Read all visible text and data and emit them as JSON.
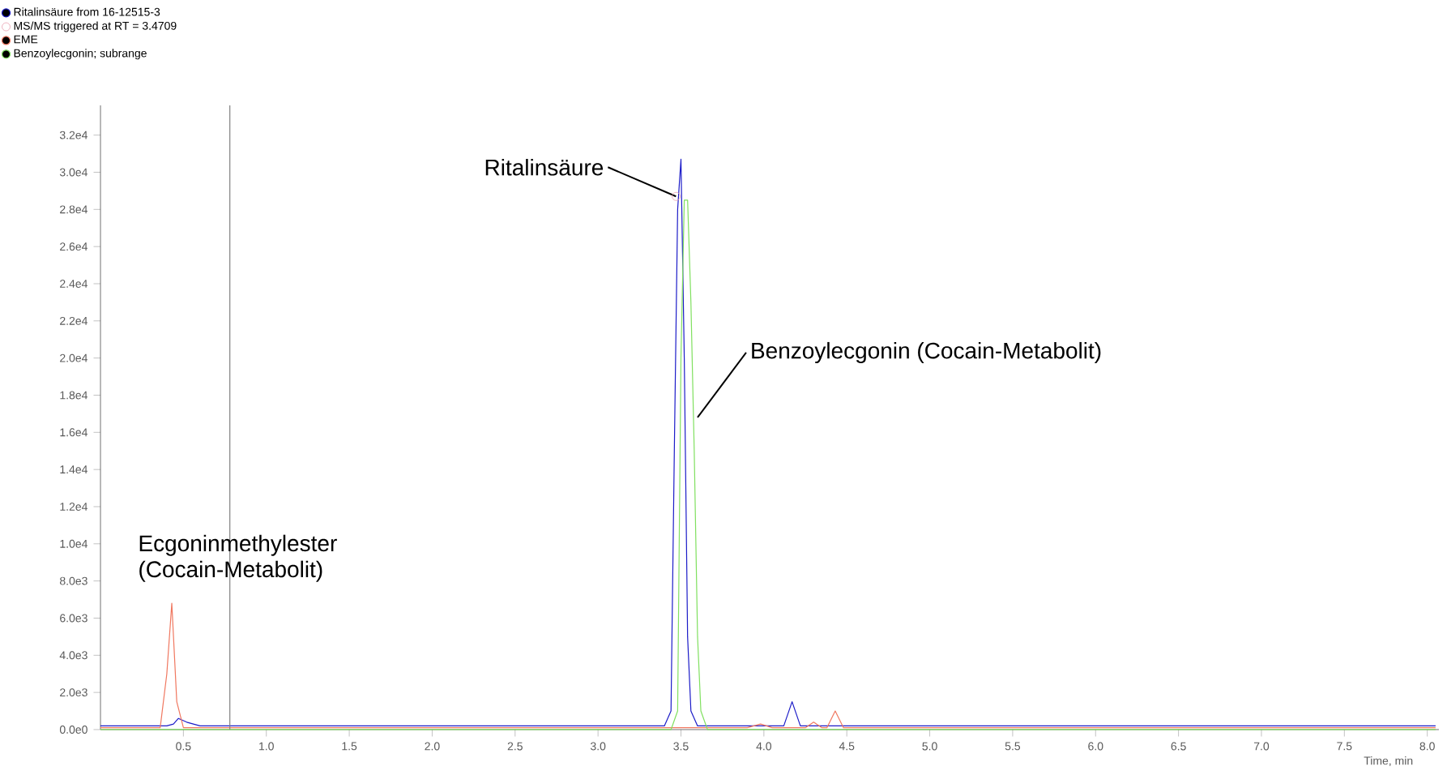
{
  "chart_data": {
    "type": "line",
    "xlabel": "Time, min",
    "xlim": [
      0,
      8.07
    ],
    "ylim": [
      0,
      33600
    ],
    "xticks": [
      {
        "value": 0.5,
        "label": "0.5"
      },
      {
        "value": 1.0,
        "label": "1.0"
      },
      {
        "value": 1.5,
        "label": "1.5"
      },
      {
        "value": 2.0,
        "label": "2.0"
      },
      {
        "value": 2.5,
        "label": "2.5"
      },
      {
        "value": 3.0,
        "label": "3.0"
      },
      {
        "value": 3.5,
        "label": "3.5"
      },
      {
        "value": 4.0,
        "label": "4.0"
      },
      {
        "value": 4.5,
        "label": "4.5"
      },
      {
        "value": 5.0,
        "label": "5.0"
      },
      {
        "value": 5.5,
        "label": "5.5"
      },
      {
        "value": 6.0,
        "label": "6.0"
      },
      {
        "value": 6.5,
        "label": "6.5"
      },
      {
        "value": 7.0,
        "label": "7.0"
      },
      {
        "value": 7.5,
        "label": "7.5"
      },
      {
        "value": 8.0,
        "label": "8.0"
      }
    ],
    "yticks": [
      {
        "value": 0,
        "label": "0.0e0"
      },
      {
        "value": 2000,
        "label": "2.0e3"
      },
      {
        "value": 4000,
        "label": "4.0e3"
      },
      {
        "value": 6000,
        "label": "6.0e3"
      },
      {
        "value": 8000,
        "label": "8.0e3"
      },
      {
        "value": 10000,
        "label": "1.0e4"
      },
      {
        "value": 12000,
        "label": "1.2e4"
      },
      {
        "value": 14000,
        "label": "1.4e4"
      },
      {
        "value": 16000,
        "label": "1.6e4"
      },
      {
        "value": 18000,
        "label": "1.8e4"
      },
      {
        "value": 20000,
        "label": "2.0e4"
      },
      {
        "value": 22000,
        "label": "2.2e4"
      },
      {
        "value": 24000,
        "label": "2.4e4"
      },
      {
        "value": 26000,
        "label": "2.6e4"
      },
      {
        "value": 28000,
        "label": "2.8e4"
      },
      {
        "value": 30000,
        "label": "3.0e4"
      },
      {
        "value": 32000,
        "label": "3.2e4"
      }
    ],
    "legend": "top left",
    "grid": false,
    "series": [
      {
        "name": "Ritalinsäure from 16-12515-3",
        "color": "#1c1cc8",
        "x": [
          0,
          0.4,
          0.44,
          0.47,
          0.52,
          0.6,
          1.0,
          2.0,
          3.0,
          3.4,
          3.44,
          3.46,
          3.48,
          3.5,
          3.52,
          3.54,
          3.56,
          3.6,
          4.0,
          4.12,
          4.17,
          4.22,
          4.5,
          5,
          6,
          7,
          8.05
        ],
        "values": [
          200,
          200,
          300,
          600,
          400,
          200,
          200,
          200,
          200,
          200,
          1000,
          15000,
          28000,
          30700,
          20000,
          5000,
          1000,
          200,
          200,
          200,
          1500,
          200,
          200,
          200,
          200,
          200,
          200
        ]
      },
      {
        "name": "MS/MS triggered at RT = 3.4709",
        "type": "scatter",
        "marker": "circle",
        "color": "#e8a0b0",
        "x": [
          3.4709
        ],
        "values": [
          28700
        ]
      },
      {
        "name": "EME",
        "color": "#f07860",
        "x": [
          0,
          0.36,
          0.4,
          0.43,
          0.46,
          0.5,
          0.6,
          3.9,
          3.98,
          4.05,
          4.25,
          4.3,
          4.35,
          4.38,
          4.43,
          4.48,
          4.55,
          8.05
        ],
        "values": [
          100,
          100,
          3000,
          6800,
          1500,
          100,
          100,
          100,
          300,
          100,
          100,
          400,
          100,
          100,
          1000,
          100,
          100,
          100
        ]
      },
      {
        "name": "Benzoylecgonin; subrange",
        "color": "#80e060",
        "x": [
          0,
          3.44,
          3.48,
          3.5,
          3.52,
          3.54,
          3.56,
          3.58,
          3.6,
          3.62,
          3.66,
          8.05
        ],
        "values": [
          0,
          0,
          1000,
          20000,
          28500,
          28500,
          23000,
          15000,
          5000,
          1000,
          0,
          0
        ]
      }
    ],
    "ref_lines": [
      {
        "axis": "x",
        "value": 0.78,
        "color": "#808080"
      }
    ],
    "annotations": [
      {
        "text": "Ritalinsäure",
        "x": 3.47,
        "y": 28700
      },
      {
        "text": "Benzoylecgonin (Cocain-Metabolit)",
        "x": 3.6,
        "y": 16800
      },
      {
        "text": "Ecgoninmethylester (Cocain-Metabolit)",
        "x": 0.43,
        "y": 6800
      }
    ]
  }
}
